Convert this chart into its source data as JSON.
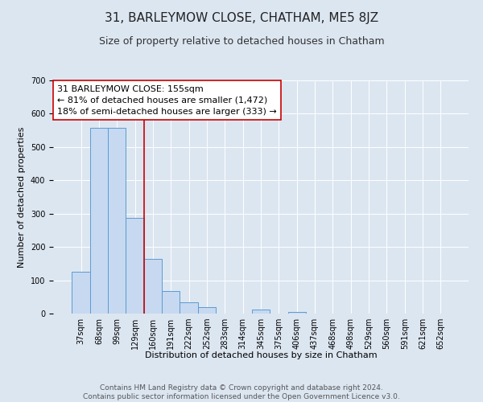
{
  "title": "31, BARLEYMOW CLOSE, CHATHAM, ME5 8JZ",
  "subtitle": "Size of property relative to detached houses in Chatham",
  "xlabel": "Distribution of detached houses by size in Chatham",
  "ylabel": "Number of detached properties",
  "categories": [
    "37sqm",
    "68sqm",
    "99sqm",
    "129sqm",
    "160sqm",
    "191sqm",
    "222sqm",
    "252sqm",
    "283sqm",
    "314sqm",
    "345sqm",
    "375sqm",
    "406sqm",
    "437sqm",
    "468sqm",
    "498sqm",
    "529sqm",
    "560sqm",
    "591sqm",
    "621sqm",
    "652sqm"
  ],
  "values": [
    125,
    557,
    557,
    287,
    163,
    68,
    33,
    20,
    0,
    0,
    12,
    0,
    5,
    0,
    0,
    0,
    0,
    0,
    0,
    0,
    0
  ],
  "bar_color": "#c6d9f0",
  "bar_edge_color": "#5b9bd5",
  "vline_x": 3.5,
  "vline_color": "#cc0000",
  "annotation_text": "31 BARLEYMOW CLOSE: 155sqm\n← 81% of detached houses are smaller (1,472)\n18% of semi-detached houses are larger (333) →",
  "annotation_box_color": "#ffffff",
  "annotation_box_edge_color": "#cc0000",
  "ylim": [
    0,
    700
  ],
  "yticks": [
    0,
    100,
    200,
    300,
    400,
    500,
    600,
    700
  ],
  "footer_line1": "Contains HM Land Registry data © Crown copyright and database right 2024.",
  "footer_line2": "Contains public sector information licensed under the Open Government Licence v3.0.",
  "background_color": "#dce6f1",
  "plot_background_color": "#dce6f1",
  "grid_color": "#ffffff",
  "title_fontsize": 11,
  "subtitle_fontsize": 9,
  "axis_label_fontsize": 8,
  "tick_fontsize": 7,
  "annotation_fontsize": 8,
  "footer_fontsize": 6.5
}
